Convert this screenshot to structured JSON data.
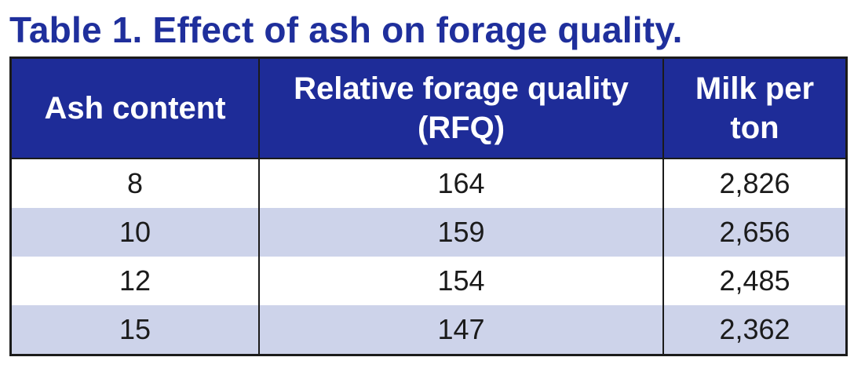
{
  "title": "Table 1. Effect of ash on forage quality.",
  "chart_data": {
    "type": "table",
    "title": "Table 1. Effect of ash on forage quality.",
    "columns": [
      "Ash content",
      "Relative forage quality (RFQ)",
      "Milk per ton"
    ],
    "rows": [
      [
        "8",
        "164",
        "2,826"
      ],
      [
        "10",
        "159",
        "2,656"
      ],
      [
        "12",
        "154",
        "2,485"
      ],
      [
        "15",
        "147",
        "2,362"
      ]
    ]
  },
  "colors": {
    "title": "#1f2f9c",
    "header_bg": "#1e2c98",
    "header_text": "#ffffff",
    "row_alt_bg": "#cdd3ea",
    "row_bg": "#ffffff",
    "border": "#1b1b1b"
  }
}
